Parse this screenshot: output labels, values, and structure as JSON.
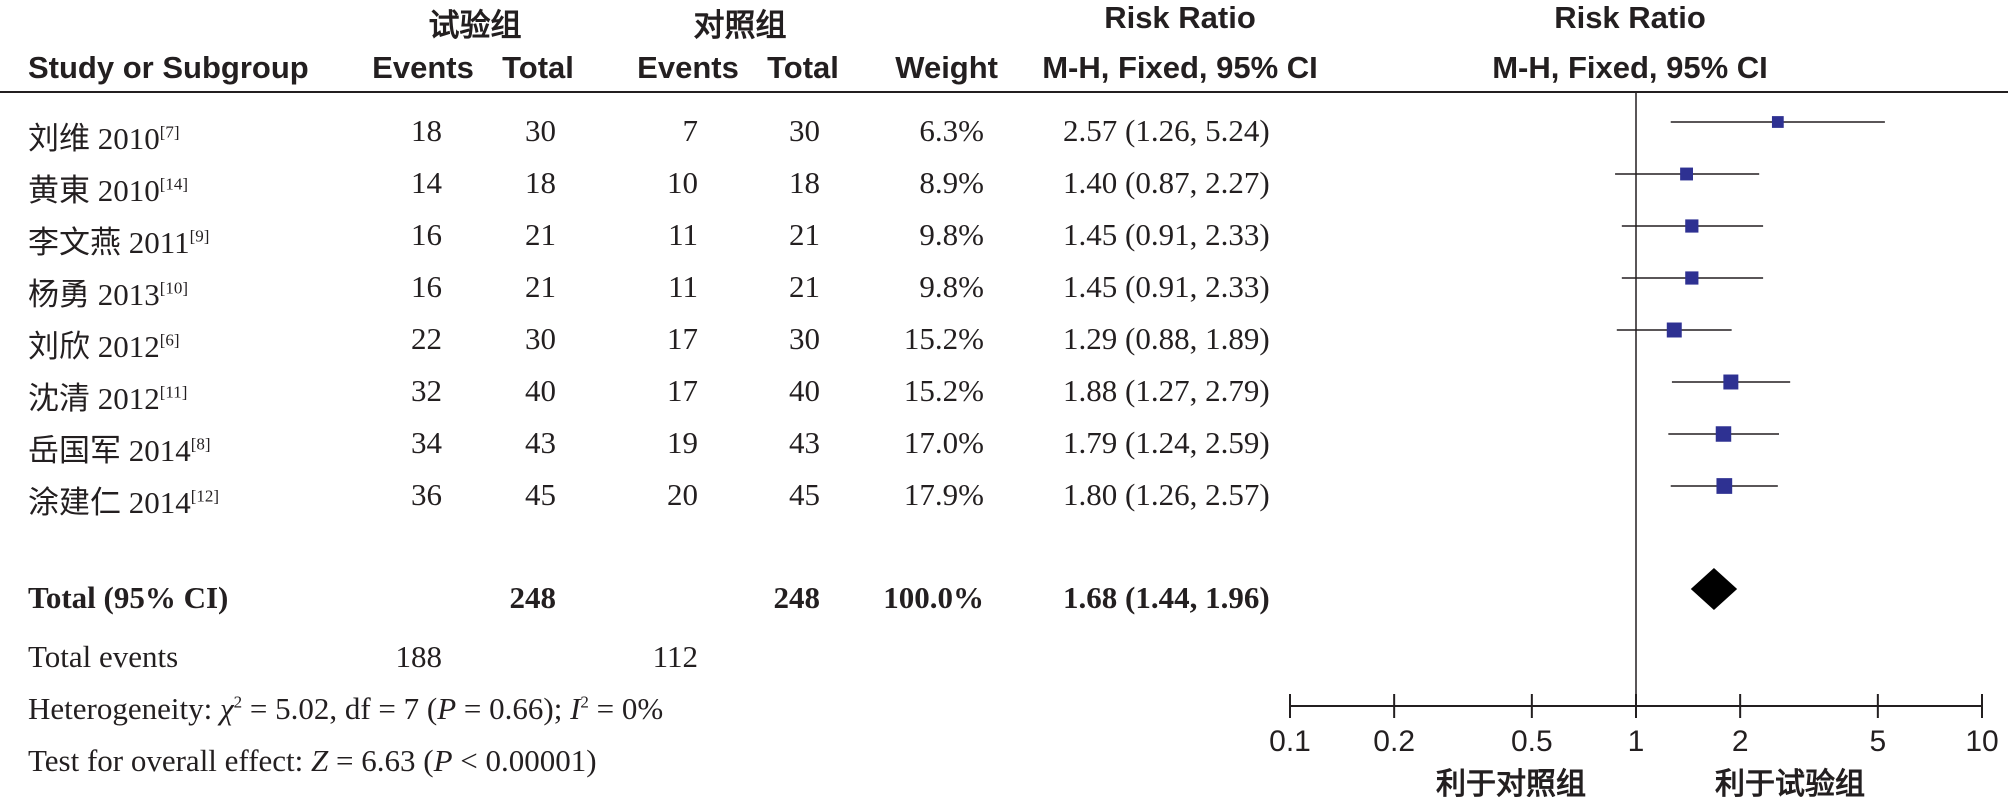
{
  "header": {
    "group_exp": "试验组",
    "group_ctrl": "对照组",
    "rr_title_left": "Risk Ratio",
    "rr_title_right": "Risk Ratio",
    "col_study": "Study or Subgroup",
    "col_events_exp": "Events",
    "col_total_exp": "Total",
    "col_events_ctrl": "Events",
    "col_total_ctrl": "Total",
    "col_weight": "Weight",
    "col_method_left": "M-H, Fixed, 95% CI",
    "col_method_right": "M-H, Fixed, 95% CI"
  },
  "studies": [
    {
      "name": "刘维 2010",
      "ref": "[7]",
      "exp_events": "18",
      "exp_total": "30",
      "ctrl_events": "7",
      "ctrl_total": "30",
      "weight": "6.3%",
      "ci_text": "2.57 (1.26, 5.24)"
    },
    {
      "name": "黄東 2010",
      "ref": "[14]",
      "exp_events": "14",
      "exp_total": "18",
      "ctrl_events": "10",
      "ctrl_total": "18",
      "weight": "8.9%",
      "ci_text": "1.40 (0.87, 2.27)"
    },
    {
      "name": "李文燕 2011",
      "ref": "[9]",
      "exp_events": "16",
      "exp_total": "21",
      "ctrl_events": "11",
      "ctrl_total": "21",
      "weight": "9.8%",
      "ci_text": "1.45 (0.91, 2.33)"
    },
    {
      "name": "杨勇 2013",
      "ref": "[10]",
      "exp_events": "16",
      "exp_total": "21",
      "ctrl_events": "11",
      "ctrl_total": "21",
      "weight": "9.8%",
      "ci_text": "1.45 (0.91, 2.33)"
    },
    {
      "name": "刘欣 2012",
      "ref": "[6]",
      "exp_events": "22",
      "exp_total": "30",
      "ctrl_events": "17",
      "ctrl_total": "30",
      "weight": "15.2%",
      "ci_text": "1.29 (0.88, 1.89)"
    },
    {
      "name": "沈清 2012",
      "ref": "[11]",
      "exp_events": "32",
      "exp_total": "40",
      "ctrl_events": "17",
      "ctrl_total": "40",
      "weight": "15.2%",
      "ci_text": "1.88 (1.27, 2.79)"
    },
    {
      "name": "岳国军 2014",
      "ref": "[8]",
      "exp_events": "34",
      "exp_total": "43",
      "ctrl_events": "19",
      "ctrl_total": "43",
      "weight": "17.0%",
      "ci_text": "1.79 (1.24, 2.59)"
    },
    {
      "name": "涂建仁 2014",
      "ref": "[12]",
      "exp_events": "36",
      "exp_total": "45",
      "ctrl_events": "20",
      "ctrl_total": "45",
      "weight": "17.9%",
      "ci_text": "1.80 (1.26, 2.57)"
    }
  ],
  "total": {
    "label": "Total (95% CI)",
    "exp_total": "248",
    "ctrl_total": "248",
    "weight": "100.0%",
    "ci_text": "1.68 (1.44, 1.96)"
  },
  "total_events": {
    "label": "Total events",
    "exp": "188",
    "ctrl": "112"
  },
  "heterogeneity": {
    "prefix": "Heterogeneity: ",
    "chi_symbol": "χ",
    "chi_value": " = 5.02, df = 7 (",
    "p_symbol": "P",
    "p_value": " = 0.66); ",
    "i_symbol": "I",
    "i_value": " = 0%"
  },
  "overall_effect": {
    "prefix": "Test for overall effect: ",
    "z_symbol": "Z",
    "z_value": " = 6.63 (",
    "p_symbol": "P",
    "p_value": " < 0.00001)"
  },
  "colors": {
    "marker": "#2e3192",
    "ink": "#231f20",
    "diamond": "#000000"
  },
  "chart_data": {
    "type": "forest",
    "x_scale": "log",
    "xlim": [
      0.1,
      10
    ],
    "ticks": [
      0.1,
      0.2,
      0.5,
      1,
      2,
      5,
      10
    ],
    "tick_labels": [
      "0.1",
      "0.2",
      "0.5",
      "1",
      "2",
      "5",
      "10"
    ],
    "favours_left": "利于对照组",
    "favours_right": "利于试验组",
    "series": [
      {
        "rr": 2.57,
        "lo": 1.26,
        "hi": 5.24,
        "weight": 6.3
      },
      {
        "rr": 1.4,
        "lo": 0.87,
        "hi": 2.27,
        "weight": 8.9
      },
      {
        "rr": 1.45,
        "lo": 0.91,
        "hi": 2.33,
        "weight": 9.8
      },
      {
        "rr": 1.45,
        "lo": 0.91,
        "hi": 2.33,
        "weight": 9.8
      },
      {
        "rr": 1.29,
        "lo": 0.88,
        "hi": 1.89,
        "weight": 15.2
      },
      {
        "rr": 1.88,
        "lo": 1.27,
        "hi": 2.79,
        "weight": 15.2
      },
      {
        "rr": 1.79,
        "lo": 1.24,
        "hi": 2.59,
        "weight": 17.0
      },
      {
        "rr": 1.8,
        "lo": 1.26,
        "hi": 2.57,
        "weight": 17.9
      }
    ],
    "pooled": {
      "rr": 1.68,
      "lo": 1.44,
      "hi": 1.96
    }
  }
}
